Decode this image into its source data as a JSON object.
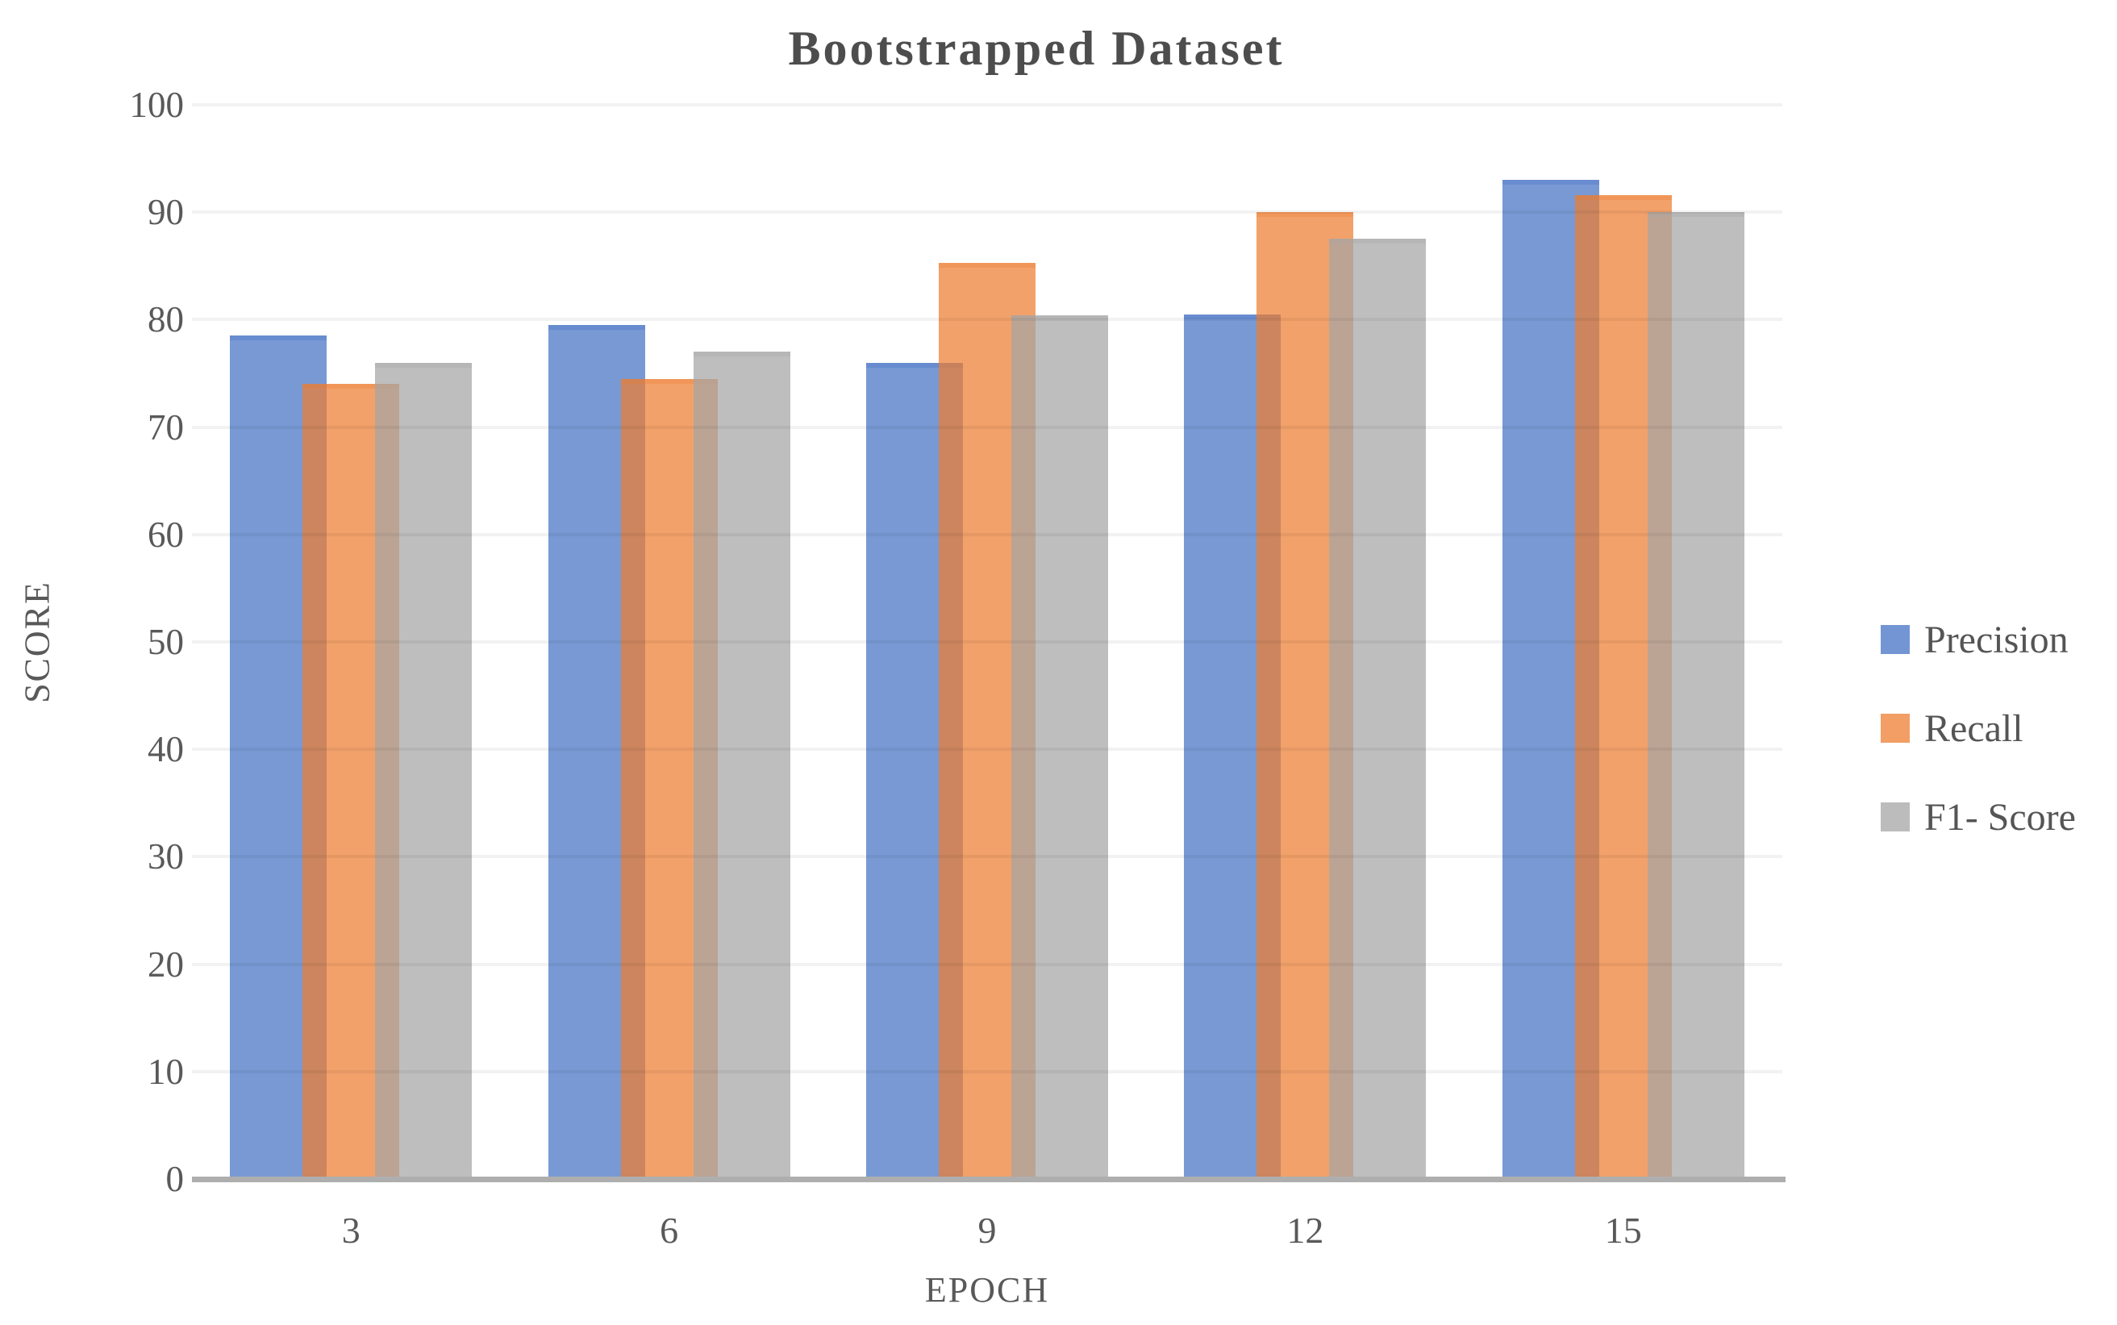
{
  "chart_data": {
    "type": "bar",
    "title": "Bootstrapped Dataset",
    "xlabel": "EPOCH",
    "ylabel": "SCORE",
    "categories": [
      "3",
      "6",
      "9",
      "12",
      "15"
    ],
    "series": [
      {
        "name": "Precision",
        "color": "#4472C4",
        "values": [
          78.5,
          79.5,
          76,
          80.5,
          93
        ]
      },
      {
        "name": "Recall",
        "color": "#ED7D31",
        "values": [
          74,
          74.5,
          85.3,
          90,
          91.6
        ]
      },
      {
        "name": "F1- Score",
        "color": "#A5A5A5",
        "values": [
          76,
          77,
          80.4,
          87.5,
          90
        ]
      }
    ],
    "ylim": [
      0,
      100
    ],
    "ytick_step": 10,
    "grid": true,
    "legend_position": "right",
    "bars_semi_transparent": true,
    "bars_overlap": true
  },
  "colors": {
    "axis_line": "#aeaeae",
    "text": "#595959",
    "title_text": "#4d4d4d"
  }
}
